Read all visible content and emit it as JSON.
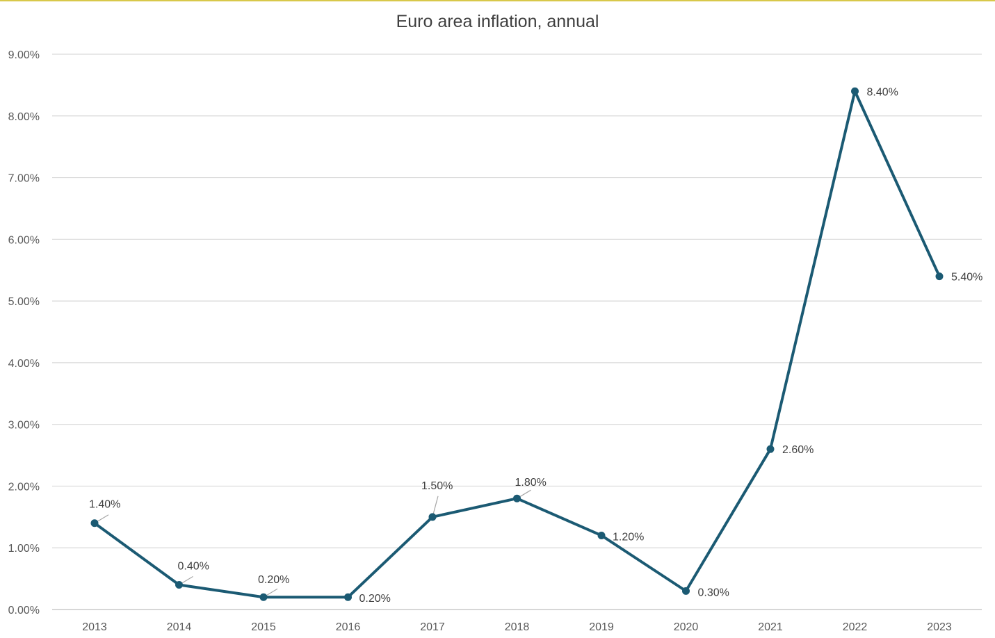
{
  "chart_data": {
    "type": "line",
    "title": "Euro area inflation, annual",
    "xlabel": "",
    "ylabel": "",
    "categories": [
      "2013",
      "2014",
      "2015",
      "2016",
      "2017",
      "2018",
      "2019",
      "2020",
      "2021",
      "2022",
      "2023"
    ],
    "series": [
      {
        "values": [
          1.4,
          0.4,
          0.2,
          0.2,
          1.5,
          1.8,
          1.2,
          0.3,
          2.6,
          8.4,
          5.4
        ],
        "color": "#1b5a73"
      }
    ],
    "data_labels": [
      "1.40%",
      "0.40%",
      "0.20%",
      "0.20%",
      "1.50%",
      "1.80%",
      "1.20%",
      "0.30%",
      "2.60%",
      "8.40%",
      "5.40%"
    ],
    "y_ticks": [
      "0.00%",
      "1.00%",
      "2.00%",
      "3.00%",
      "4.00%",
      "5.00%",
      "6.00%",
      "7.00%",
      "8.00%",
      "9.00%"
    ],
    "ylim": [
      0,
      9
    ],
    "grid": true,
    "legend": "none"
  }
}
